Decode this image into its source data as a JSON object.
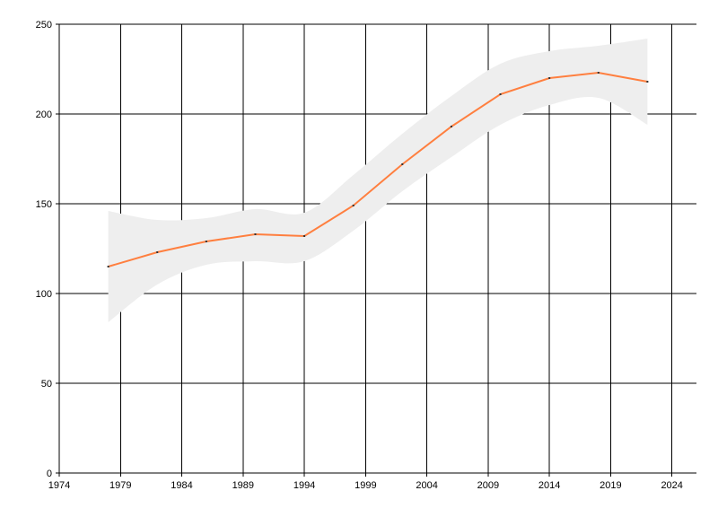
{
  "chart_data": {
    "type": "line",
    "title": "",
    "xlabel": "",
    "ylabel": "",
    "xlim": [
      1974,
      2026
    ],
    "ylim": [
      0,
      250
    ],
    "x_ticks": [
      1974,
      1979,
      1984,
      1989,
      1994,
      1999,
      2004,
      2009,
      2014,
      2019,
      2024
    ],
    "y_ticks": [
      0,
      50,
      100,
      150,
      200,
      250
    ],
    "grid": true,
    "legend": "none",
    "colors": {
      "line": "#ff7f3f",
      "band": "#eeeeee",
      "marker": "#333333",
      "grid": "#000000"
    },
    "series": [
      {
        "x": [
          1978,
          1982,
          1986,
          1990,
          1994,
          1998,
          2002,
          2006,
          2010,
          2014,
          2018,
          2022
        ],
        "values": [
          115,
          123,
          129,
          133,
          132,
          149,
          172,
          193,
          211,
          220,
          223,
          218
        ],
        "band_upper": [
          146,
          141,
          142,
          147,
          145,
          166,
          189,
          210,
          228,
          235,
          238,
          242
        ],
        "band_lower": [
          84,
          105,
          116,
          118,
          118,
          135,
          157,
          176,
          194,
          205,
          209,
          194
        ]
      }
    ]
  }
}
